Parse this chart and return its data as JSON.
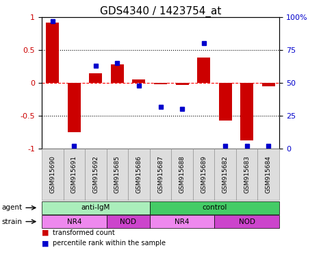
{
  "title": "GDS4340 / 1423754_at",
  "samples": [
    "GSM915690",
    "GSM915691",
    "GSM915692",
    "GSM915685",
    "GSM915686",
    "GSM915687",
    "GSM915688",
    "GSM915689",
    "GSM915682",
    "GSM915683",
    "GSM915684"
  ],
  "bar_values": [
    0.92,
    -0.75,
    0.15,
    0.28,
    0.05,
    -0.02,
    -0.03,
    0.38,
    -0.57,
    -0.88,
    -0.05
  ],
  "dot_values": [
    0.97,
    0.02,
    0.63,
    0.65,
    0.48,
    0.32,
    0.3,
    0.8,
    0.02,
    0.02,
    0.02
  ],
  "bar_color": "#cc0000",
  "dot_color": "#0000cc",
  "bar_width": 0.6,
  "ylim": [
    -1.0,
    1.0
  ],
  "y_left_ticks": [
    -1,
    -0.5,
    0,
    0.5,
    1
  ],
  "y_left_labels": [
    "-1",
    "-0.5",
    "0",
    "0.5",
    "1"
  ],
  "y_right_ticks": [
    0,
    25,
    50,
    75,
    100
  ],
  "y_right_labels": [
    "0",
    "25",
    "50",
    "75",
    "100%"
  ],
  "agent_groups": [
    {
      "label": "anti-IgM",
      "start": 0,
      "end": 5,
      "color": "#aaeebb"
    },
    {
      "label": "control",
      "start": 5,
      "end": 11,
      "color": "#44cc66"
    }
  ],
  "strain_groups": [
    {
      "label": "NR4",
      "start": 0,
      "end": 3,
      "color": "#ee88ee"
    },
    {
      "label": "NOD",
      "start": 3,
      "end": 5,
      "color": "#cc44cc"
    },
    {
      "label": "NR4",
      "start": 5,
      "end": 8,
      "color": "#ee88ee"
    },
    {
      "label": "NOD",
      "start": 8,
      "end": 11,
      "color": "#cc44cc"
    }
  ],
  "legend_red_label": "transformed count",
  "legend_blue_label": "percentile rank within the sample",
  "bg_color": "#ffffff",
  "tick_color_left": "#cc0000",
  "tick_color_right": "#0000cc",
  "title_fontsize": 11,
  "tick_fontsize": 8,
  "sample_fontsize": 6.5
}
